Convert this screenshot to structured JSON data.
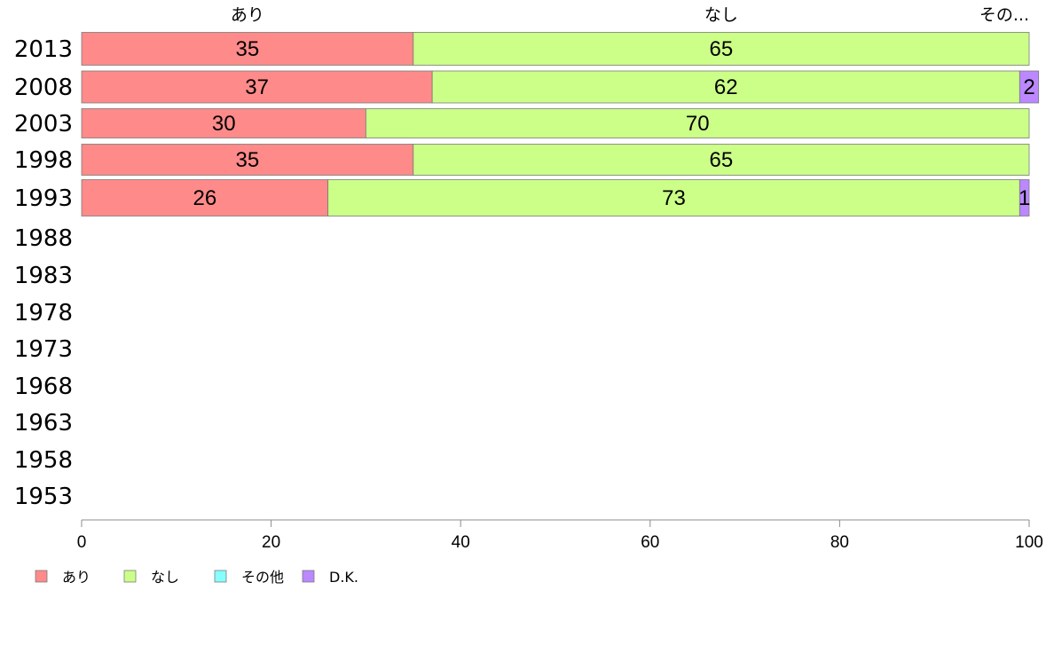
{
  "chart_data": {
    "type": "bar",
    "orientation": "horizontal",
    "stacked": true,
    "categories": [
      "2013",
      "2008",
      "2003",
      "1998",
      "1993",
      "1988",
      "1983",
      "1978",
      "1973",
      "1968",
      "1963",
      "1958",
      "1953"
    ],
    "series": [
      {
        "name": "あり",
        "color": "#ff8a8a",
        "values": [
          35,
          37,
          30,
          35,
          26,
          null,
          null,
          null,
          null,
          null,
          null,
          null,
          null
        ]
      },
      {
        "name": "なし",
        "color": "#ccff88",
        "values": [
          65,
          62,
          70,
          65,
          73,
          null,
          null,
          null,
          null,
          null,
          null,
          null,
          null
        ]
      },
      {
        "name": "その他",
        "color": "#88ffff",
        "values": [
          0,
          0,
          0,
          0,
          0,
          null,
          null,
          null,
          null,
          null,
          null,
          null,
          null
        ]
      },
      {
        "name": "D.K.",
        "color": "#bb88ff",
        "values": [
          0,
          2,
          0,
          0,
          1,
          null,
          null,
          null,
          null,
          null,
          null,
          null,
          null
        ]
      }
    ],
    "top_labels": [
      "あり",
      "なし",
      "その..."
    ],
    "xlim": [
      0,
      100
    ],
    "xticks": [
      0,
      20,
      40,
      60,
      80,
      100
    ],
    "grid": false,
    "legend_position": "bottom-left"
  }
}
